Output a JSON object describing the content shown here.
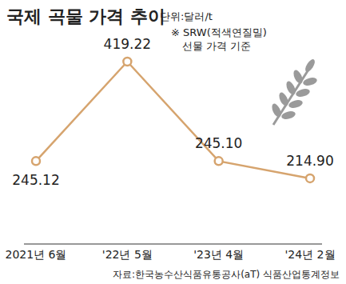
{
  "chart_data": {
    "type": "line",
    "title": "국제 곡물 가격 추이",
    "subtitle": "단위:달러/t",
    "note": [
      "※ SRW(적색연질밀)",
      "선물 가격 기준"
    ],
    "source": "자료:한국농수산식품유통공사(aT) 식품산업통계정보",
    "categories": [
      "2021년 6월",
      "'22년 5월",
      "'23년 4월",
      "'24년 2월"
    ],
    "values": [
      245.12,
      419.22,
      245.1,
      214.9
    ],
    "value_labels": [
      "245.12",
      "419.22",
      "245.10",
      "214.90"
    ],
    "color": "#d6a46e",
    "marker": "circle",
    "ylim": [
      100,
      450
    ],
    "grid": false,
    "data_labels": true,
    "tick_labels": "x"
  }
}
